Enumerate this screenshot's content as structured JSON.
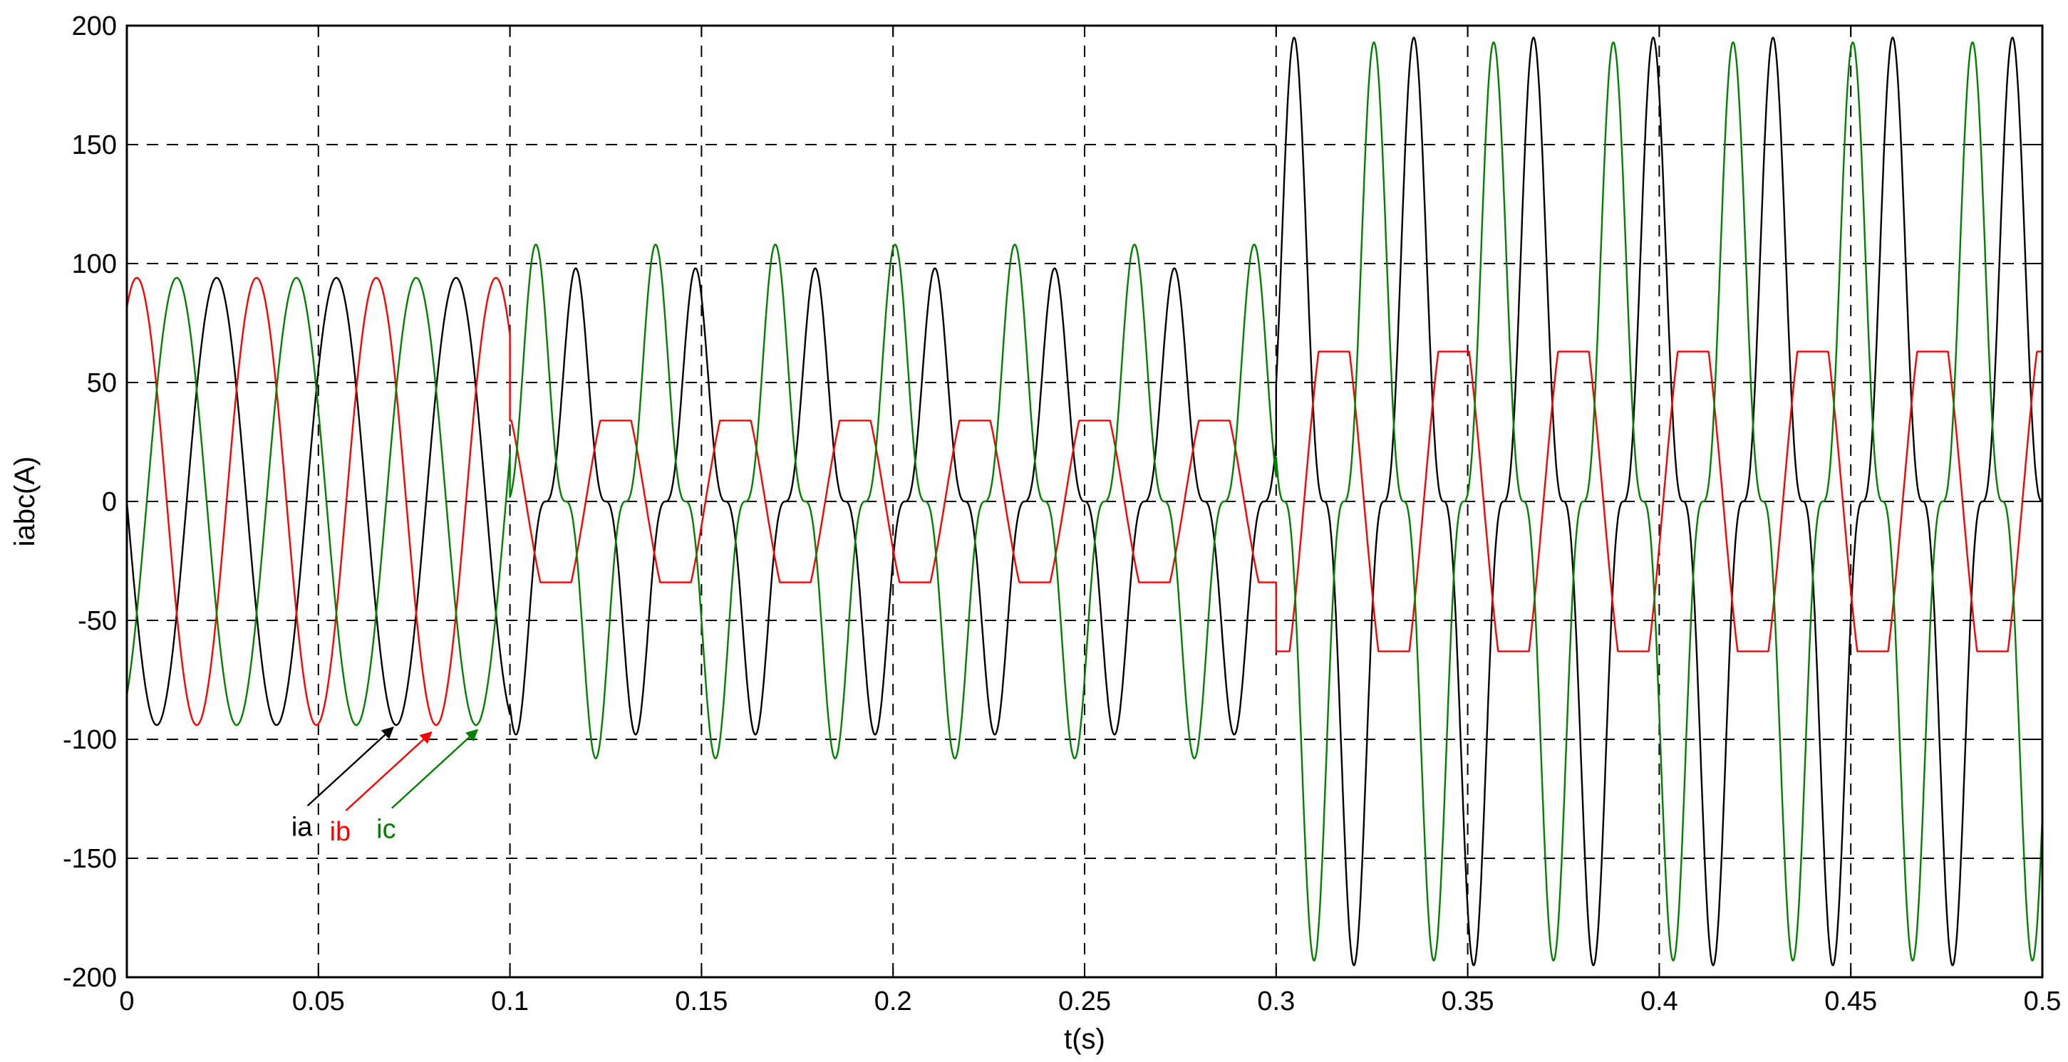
{
  "chart_data": {
    "type": "line",
    "title": "",
    "xlabel": "t(s)",
    "ylabel": "iabc(A)",
    "xlim": [
      0,
      0.5
    ],
    "ylim": [
      -200,
      200
    ],
    "x_ticks": [
      0,
      0.05,
      0.1,
      0.15,
      0.2,
      0.25,
      0.3,
      0.35,
      0.4,
      0.45,
      0.5
    ],
    "x_tick_labels": [
      "0",
      "0.05",
      "0.1",
      "0.15",
      "0.2",
      "0.25",
      "0.3",
      "0.35",
      "0.4",
      "0.45",
      "0.5"
    ],
    "y_ticks": [
      -200,
      -150,
      -100,
      -50,
      0,
      50,
      100,
      150,
      200
    ],
    "y_tick_labels": [
      "-200",
      "-150",
      "-100",
      "-50",
      "0",
      "50",
      "100",
      "150",
      "200"
    ],
    "grid": true,
    "legend": "none",
    "series": [
      {
        "name": "ia",
        "color": "#000000",
        "frequency_hz": 32,
        "segments": [
          {
            "t_start": 0.0,
            "t_end": 0.1,
            "shape": "sine",
            "amplitude": 94,
            "phase_deg": 180
          },
          {
            "t_start": 0.1,
            "t_end": 0.3,
            "shape": "peaky",
            "amplitude": 98,
            "phase_deg": 180
          },
          {
            "t_start": 0.3,
            "t_end": 0.5,
            "shape": "peaky",
            "amplitude": 195,
            "phase_deg": 180
          }
        ]
      },
      {
        "name": "ib",
        "color": "#ff0000",
        "frequency_hz": 32,
        "segments": [
          {
            "t_start": 0.0,
            "t_end": 0.1,
            "shape": "sine",
            "amplitude": 94,
            "phase_deg": 60
          },
          {
            "t_start": 0.1,
            "t_end": 0.3,
            "shape": "flat-top",
            "amplitude": 34,
            "phase_deg": 60
          },
          {
            "t_start": 0.3,
            "t_end": 0.5,
            "shape": "flat-top",
            "amplitude": 63,
            "phase_deg": 60
          }
        ]
      },
      {
        "name": "ic",
        "color": "#008000",
        "frequency_hz": 32,
        "segments": [
          {
            "t_start": 0.0,
            "t_end": 0.1,
            "shape": "sine",
            "amplitude": 94,
            "phase_deg": -60
          },
          {
            "t_start": 0.1,
            "t_end": 0.3,
            "shape": "peaky",
            "amplitude": 108,
            "phase_deg": -60
          },
          {
            "t_start": 0.3,
            "t_end": 0.5,
            "shape": "peaky",
            "amplitude": 193,
            "phase_deg": -60
          }
        ]
      }
    ],
    "annotations": [
      {
        "text": "ia",
        "color": "#000000",
        "arrow_to": {
          "x": 0.0695,
          "y": -95
        }
      },
      {
        "text": "ib",
        "color": "#ff0000",
        "arrow_to": {
          "x": 0.0795,
          "y": -97
        }
      },
      {
        "text": "ic",
        "color": "#008000",
        "arrow_to": {
          "x": 0.0915,
          "y": -96
        }
      }
    ]
  }
}
